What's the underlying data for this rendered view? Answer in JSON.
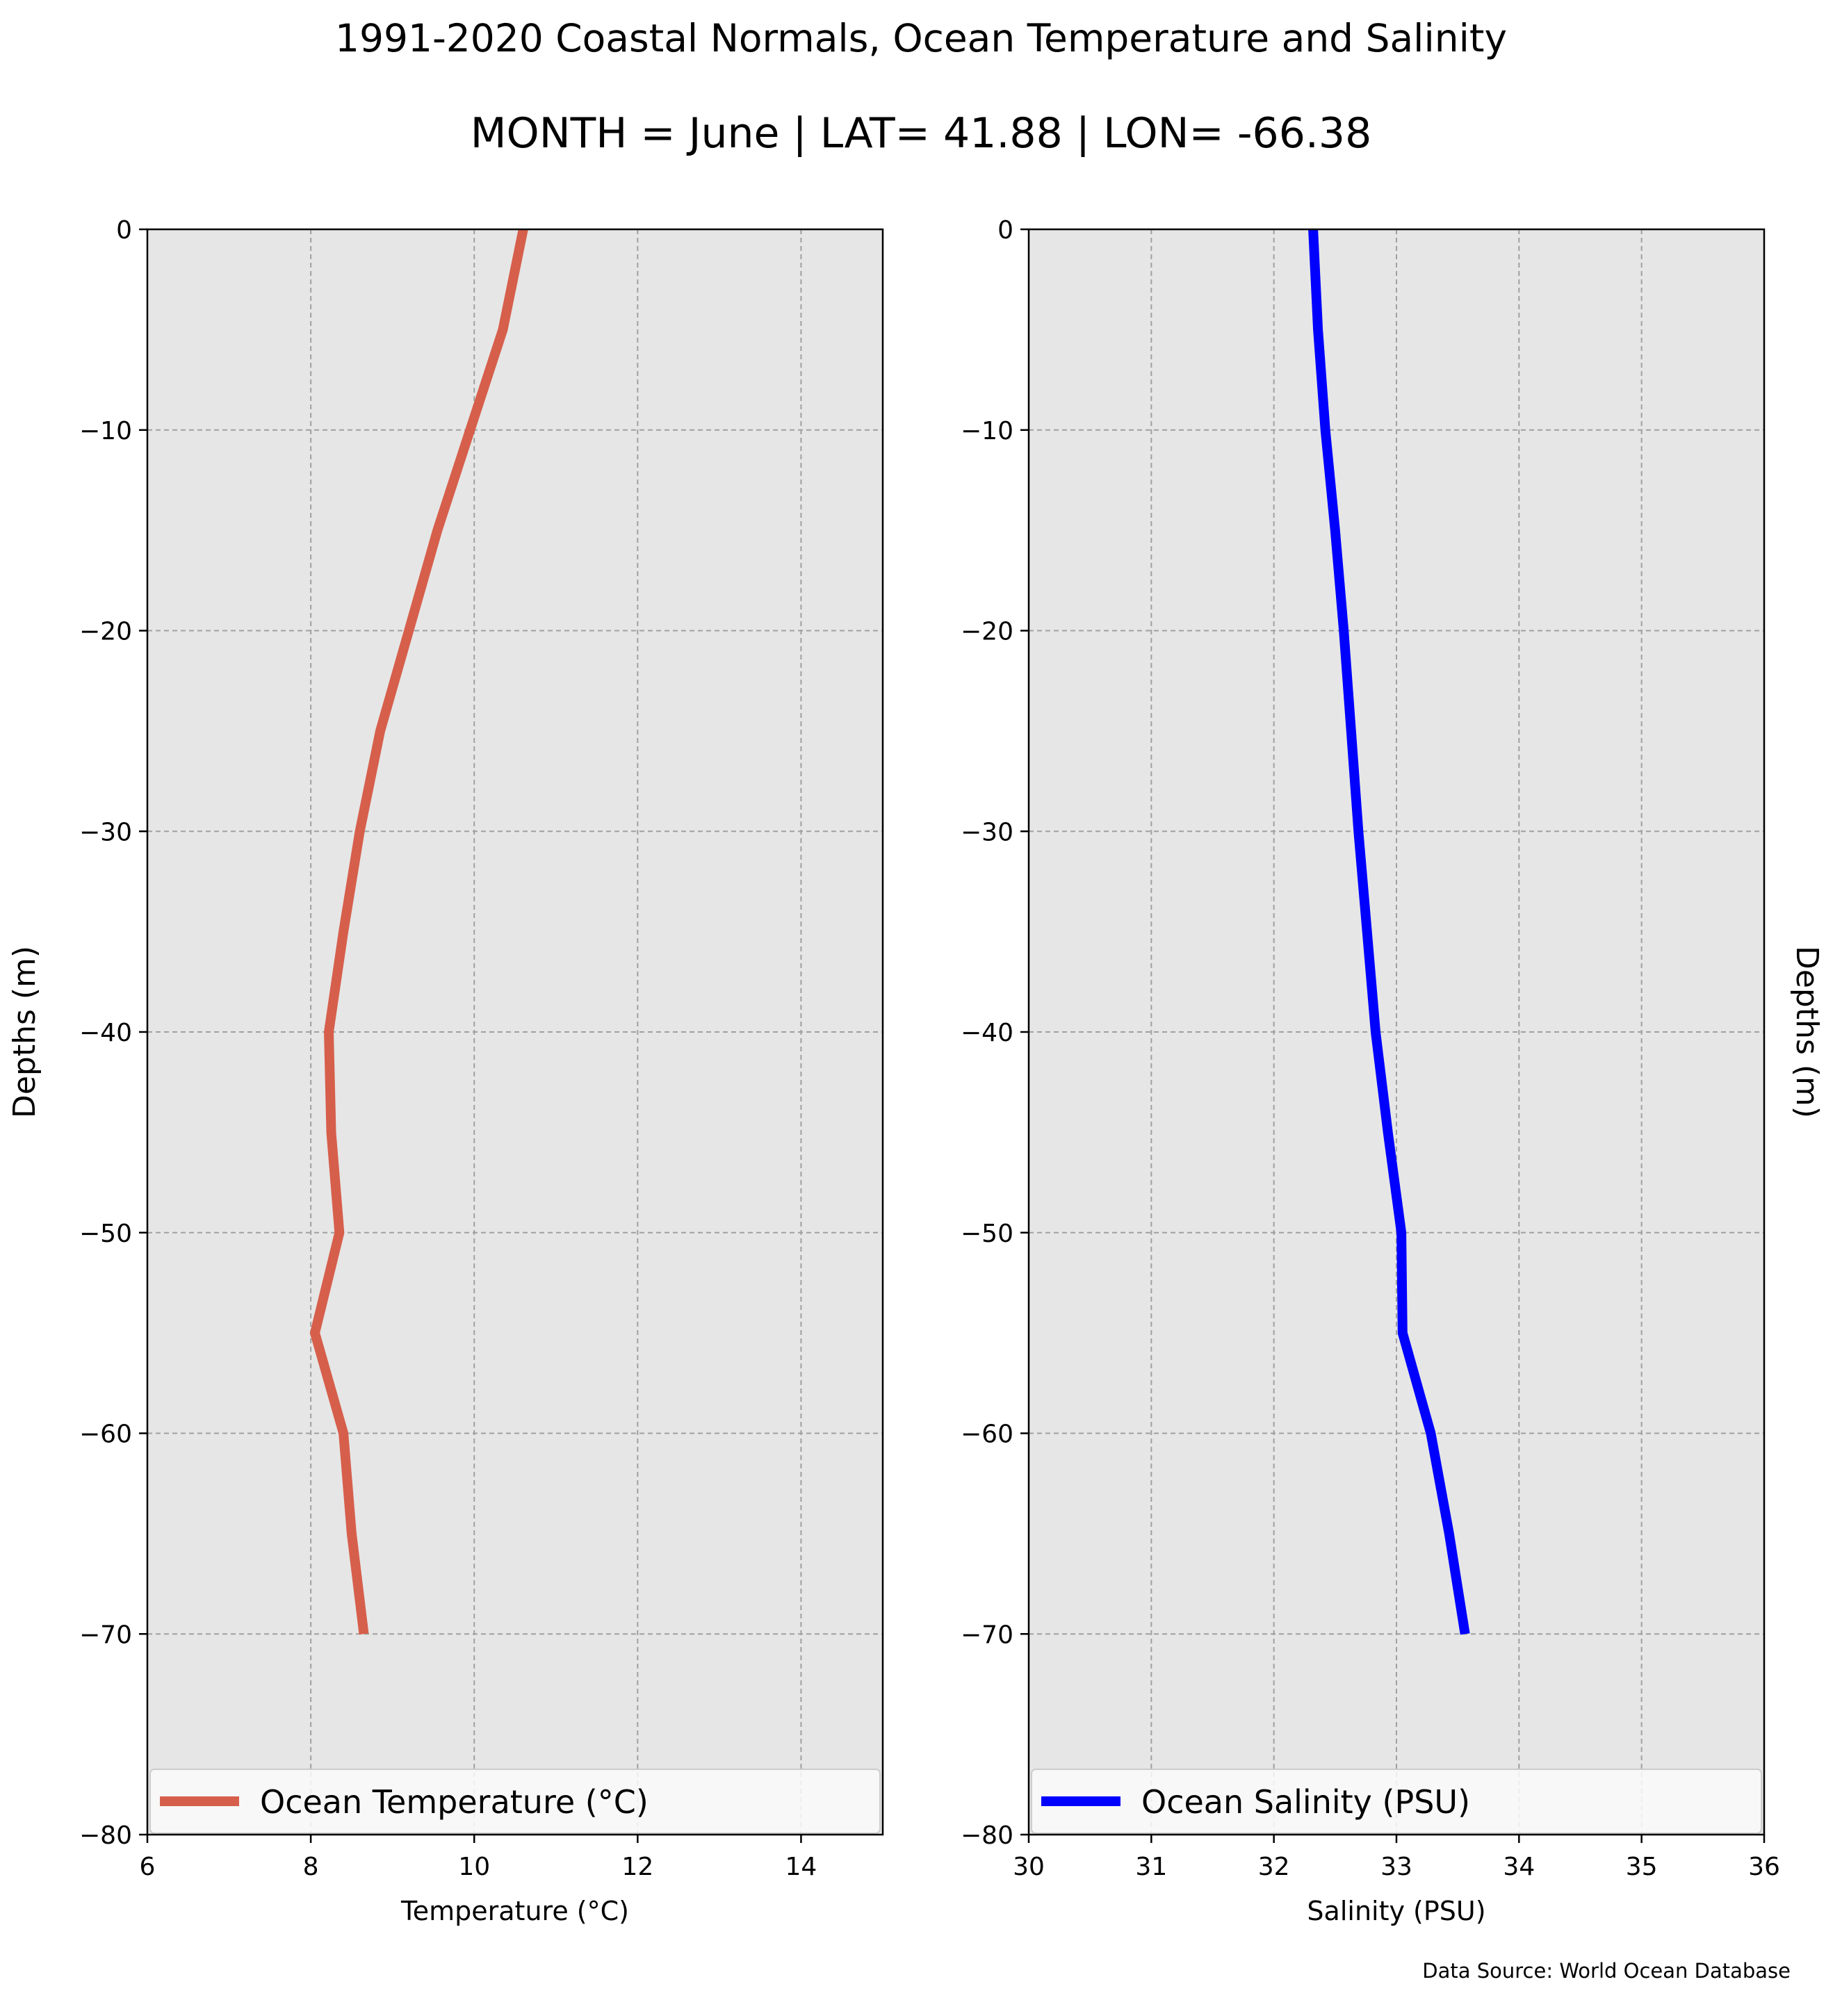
{
  "title": "1991-2020 Coastal Normals, Ocean Temperature and Salinity",
  "subtitle": "MONTH = June | LAT= 41.88 | LON= -66.38",
  "source": "Data Source: World Ocean Database",
  "colors": {
    "panel_bg": "#e6e6e6",
    "temperature": "#d65f4c",
    "salinity": "#0000ff",
    "grid": "#a0a0a0"
  },
  "chart_data": [
    {
      "type": "line",
      "ylabel": "Depths (m)",
      "xlabel": "Temperature ($^\\circ$C)",
      "xlabel_display": "Temperature (°C)",
      "xlim": [
        6,
        15
      ],
      "ylim": [
        -80,
        0
      ],
      "xticks": [
        6,
        8,
        10,
        12,
        14
      ],
      "yticks": [
        0,
        -10,
        -20,
        -30,
        -40,
        -50,
        -60,
        -70,
        -80
      ],
      "ytick_labels": [
        "0",
        "−10",
        "−20",
        "−30",
        "−40",
        "−50",
        "−60",
        "−70",
        "−80"
      ],
      "grid": true,
      "legend_position": "lower center",
      "series": [
        {
          "name": "Ocean Temperature (°C)",
          "color": "#d65f4c",
          "x": [
            10.6,
            10.35,
            9.95,
            9.55,
            9.2,
            8.85,
            8.6,
            8.4,
            8.22,
            8.25,
            8.35,
            8.05,
            8.4,
            8.5,
            8.65
          ],
          "y": [
            0,
            -5,
            -10,
            -15,
            -20,
            -25,
            -30,
            -35,
            -40,
            -45,
            -50,
            -55,
            -60,
            -65,
            -70
          ]
        }
      ]
    },
    {
      "type": "line",
      "ylabel": "Depths (m)",
      "xlabel": "Salinity (PSU)",
      "xlim": [
        30,
        36
      ],
      "ylim": [
        -80,
        0
      ],
      "xticks": [
        30,
        31,
        32,
        33,
        34,
        35,
        36
      ],
      "yticks": [
        0,
        -10,
        -20,
        -30,
        -40,
        -50,
        -60,
        -70,
        -80
      ],
      "ytick_labels": [
        "0",
        "−10",
        "−20",
        "−30",
        "−40",
        "−50",
        "−60",
        "−70",
        "−80"
      ],
      "grid": true,
      "legend_position": "lower center",
      "series": [
        {
          "name": "Ocean Salinity (PSU)",
          "color": "#0000ff",
          "x": [
            32.32,
            32.36,
            32.42,
            32.5,
            32.57,
            32.63,
            32.69,
            32.76,
            32.83,
            32.93,
            33.04,
            33.05,
            33.28,
            33.43,
            33.56
          ],
          "y": [
            0,
            -5,
            -10,
            -15,
            -20,
            -25,
            -30,
            -35,
            -40,
            -45,
            -50,
            -55,
            -60,
            -65,
            -70
          ]
        }
      ]
    }
  ]
}
